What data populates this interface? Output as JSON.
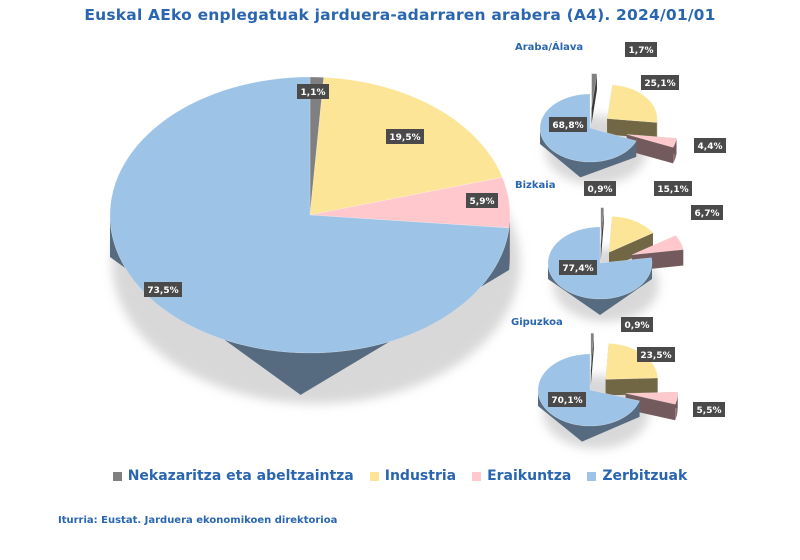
{
  "title": "Euskal AEko enplegatuak jarduera-adarraren arabera (A4). 2024/01/01",
  "source": "Iturria: Eustat. Jarduera ekonomikoen direktorioa",
  "chart_data": [
    {
      "type": "pie",
      "title": "",
      "categories": [
        "Nekazaritza eta abeltzaintza",
        "Industria",
        "Eraikuntza",
        "Zerbitzuak"
      ],
      "values": [
        1.1,
        19.5,
        5.9,
        73.5
      ],
      "labels": [
        "1,1%",
        "19,5%",
        "5,9%",
        "73,5%"
      ]
    },
    {
      "type": "pie",
      "title": "Araba/Álava",
      "categories": [
        "Nekazaritza eta abeltzaintza",
        "Industria",
        "Eraikuntza",
        "Zerbitzuak"
      ],
      "values": [
        1.7,
        25.1,
        4.4,
        68.8
      ],
      "labels": [
        "1,7%",
        "25,1%",
        "4,4%",
        "68,8%"
      ]
    },
    {
      "type": "pie",
      "title": "Bizkaia",
      "categories": [
        "Nekazaritza eta abeltzaintza",
        "Industria",
        "Eraikuntza",
        "Zerbitzuak"
      ],
      "values": [
        0.9,
        15.1,
        6.7,
        77.4
      ],
      "labels": [
        "0,9%",
        "15,1%",
        "6,7%",
        "77,4%"
      ]
    },
    {
      "type": "pie",
      "title": "Gipuzkoa",
      "categories": [
        "Nekazaritza eta abeltzaintza",
        "Industria",
        "Eraikuntza",
        "Zerbitzuak"
      ],
      "values": [
        0.9,
        23.5,
        5.5,
        70.1
      ],
      "labels": [
        "0,9%",
        "23,5%",
        "5,5%",
        "70,1%"
      ]
    }
  ],
  "legend": {
    "position": "bottom",
    "items": [
      {
        "label": "Nekazaritza eta abeltzaintza",
        "color": "#808080"
      },
      {
        "label": "Industria",
        "color": "#fde598"
      },
      {
        "label": "Eraikuntza",
        "color": "#ffc8cc"
      },
      {
        "label": "Zerbitzuak",
        "color": "#9dc3e6"
      }
    ]
  }
}
